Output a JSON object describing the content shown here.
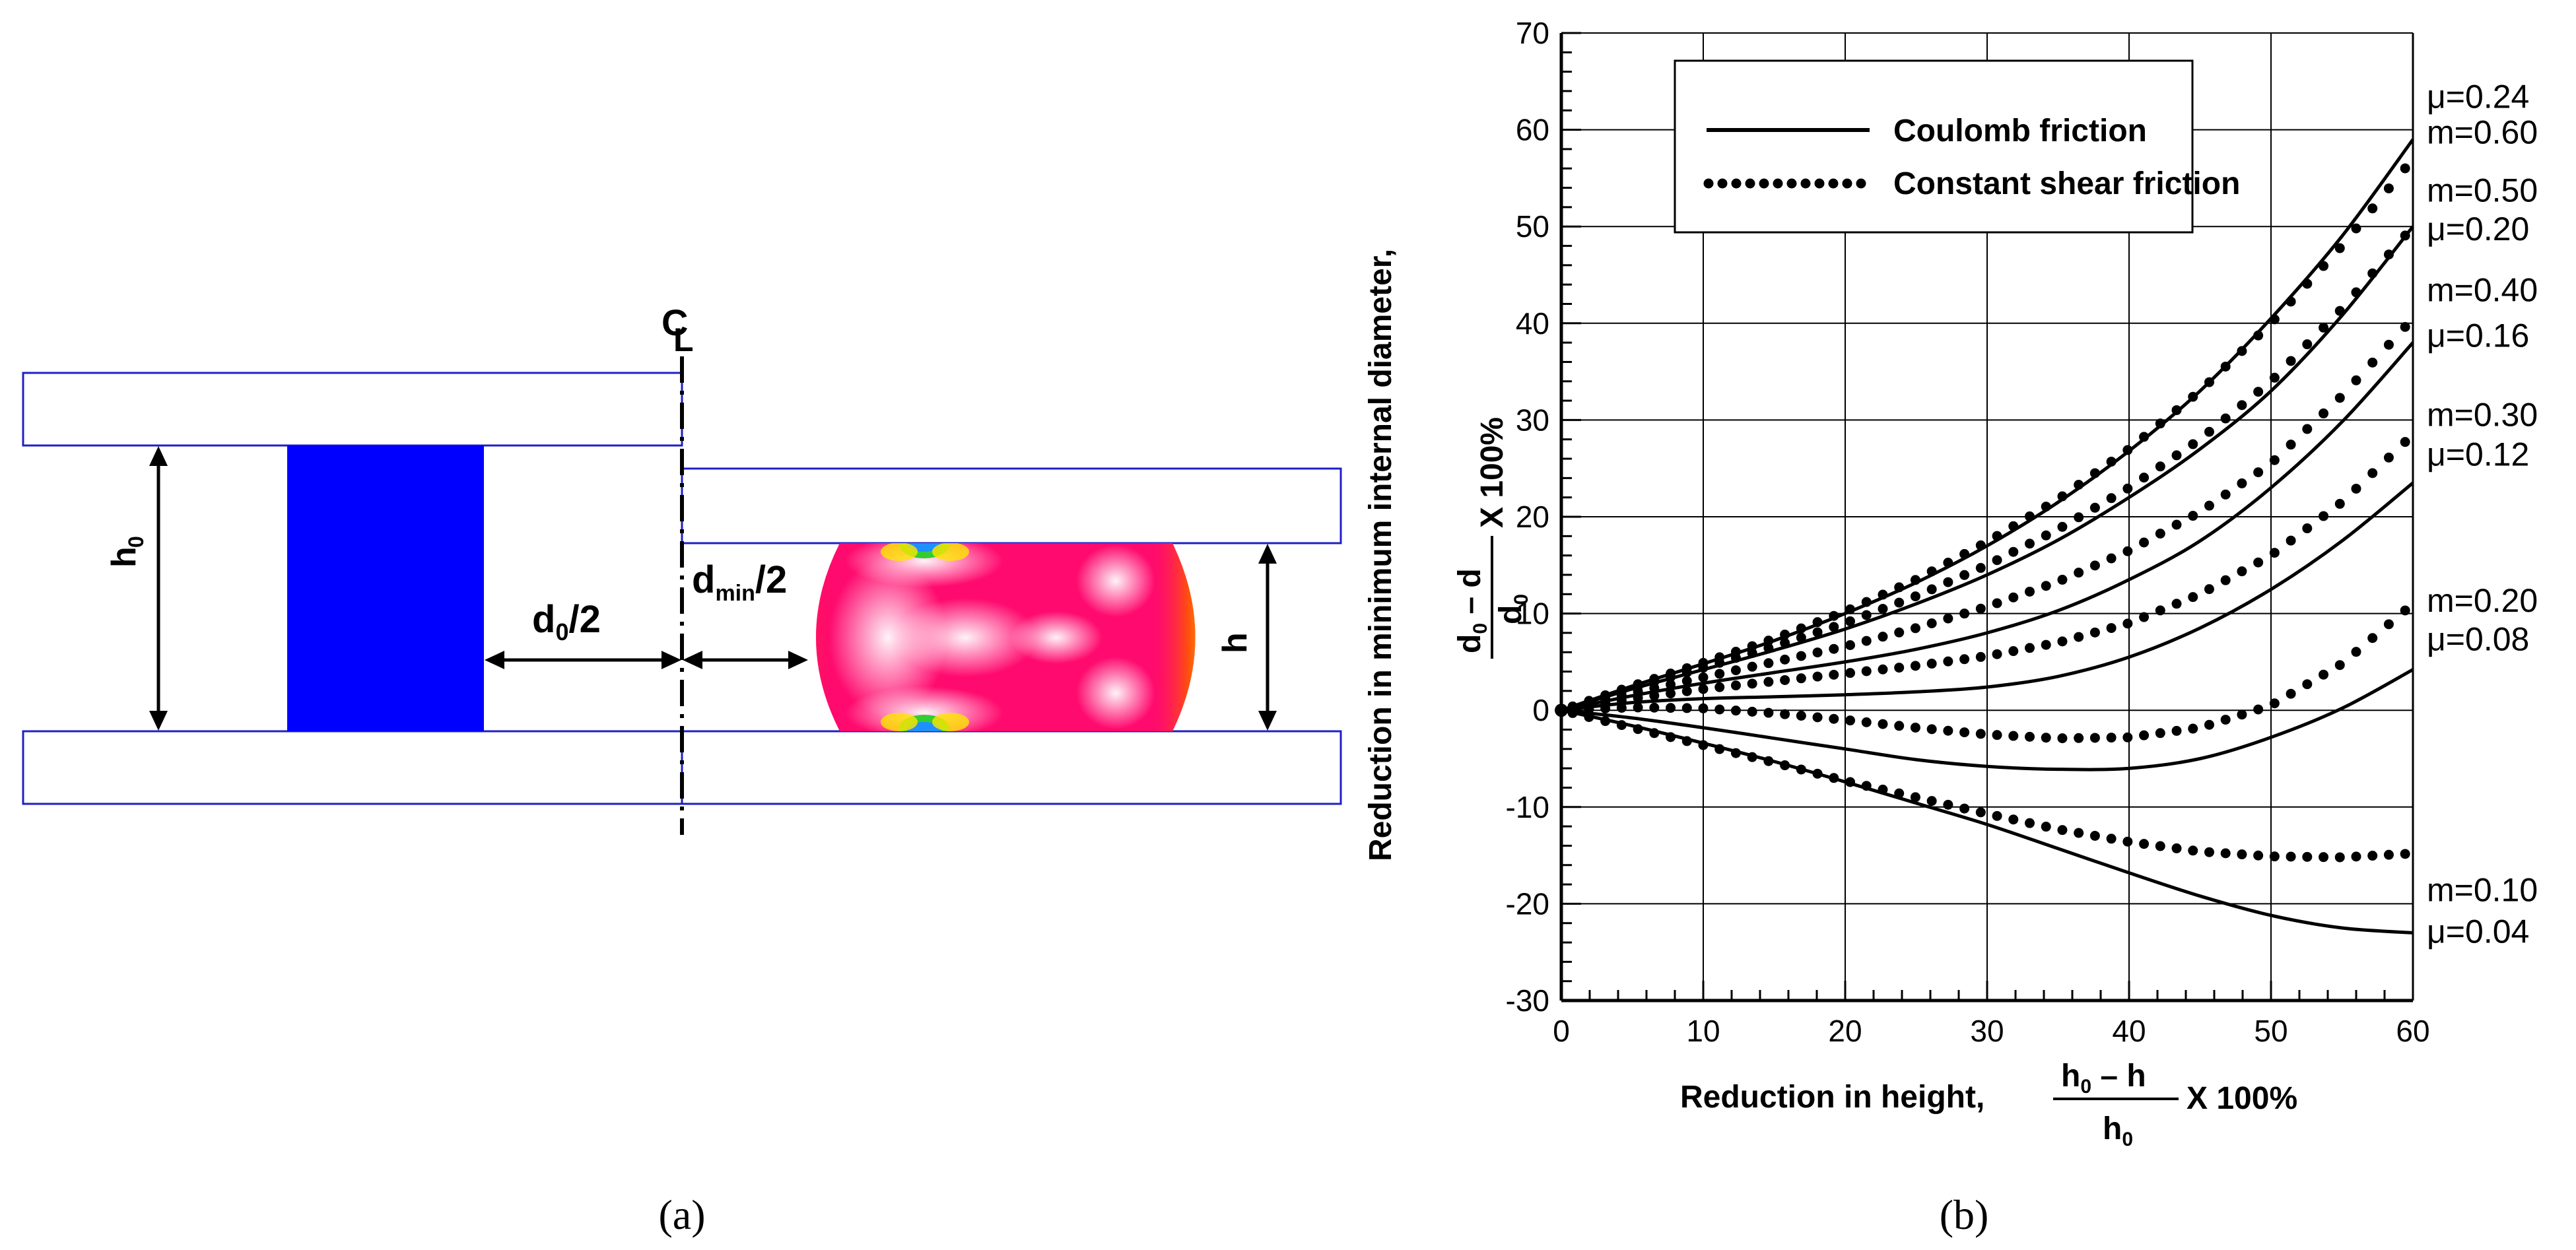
{
  "panel_a": {
    "caption": "(a)",
    "labels": {
      "centerline": "C",
      "centerline_sub": "L",
      "h0": "h",
      "h0_sub": "0",
      "d0_half_main": "d",
      "d0_half_sub": "0",
      "d0_half_tail": "/2",
      "dmin_half_main": "d",
      "dmin_half_sub": "min",
      "dmin_half_tail": "/2",
      "h": "h"
    },
    "colors": {
      "platen_border": "#1f1fc8",
      "ring_fill": "#0000ff",
      "contour_main": "#ff0a6e",
      "contour_highlight": "#ffffff",
      "contour_edge_yellow": "#ffe600",
      "contour_edge_green": "#33cc33",
      "contour_edge_blue": "#1e90ff"
    }
  },
  "panel_b": {
    "caption": "(b)"
  },
  "chart_data": {
    "type": "line",
    "xlabel": "Reduction in height,",
    "xlabel_fraction": {
      "num": "h",
      "num_sub": "0",
      "num_tail": " – h",
      "den": "h",
      "den_sub": "0",
      "suffix": "X 100%"
    },
    "ylabel": "Reduction in minimum internal diameter,",
    "ylabel_fraction": {
      "num": "d",
      "num_sub": "0",
      "num_tail": " – d",
      "den": "d",
      "den_sub": "0",
      "suffix": "X 100%"
    },
    "xlim": [
      0,
      60
    ],
    "ylim": [
      -30,
      70
    ],
    "xticks": [
      0,
      10,
      20,
      30,
      40,
      50,
      60
    ],
    "yticks": [
      -30,
      -20,
      -10,
      0,
      10,
      20,
      30,
      40,
      50,
      60,
      70
    ],
    "grid": true,
    "legend": {
      "placement": "top-left",
      "items": [
        {
          "label": "Coulomb friction",
          "style": "solid"
        },
        {
          "label": "Constant shear friction",
          "style": "dotted"
        }
      ]
    },
    "x": [
      0,
      5,
      10,
      15,
      20,
      25,
      30,
      35,
      40,
      45,
      50,
      55,
      60
    ],
    "series": [
      {
        "name": "μ=0.24",
        "style": "solid",
        "values": [
          0,
          2.5,
          4.8,
          7.2,
          10.0,
          13.2,
          17.0,
          21.5,
          26.8,
          33.0,
          40.5,
          49.0,
          59.0
        ]
      },
      {
        "name": "m=0.60",
        "style": "dotted",
        "values": [
          0,
          2.5,
          4.9,
          7.4,
          10.2,
          13.5,
          17.4,
          21.8,
          27.0,
          33.0,
          40.0,
          48.0,
          57.0
        ]
      },
      {
        "name": "μ=0.20",
        "style": "solid",
        "values": [
          0,
          2.2,
          4.2,
          6.2,
          8.4,
          11.0,
          14.0,
          17.6,
          22.0,
          27.0,
          33.0,
          40.8,
          50.0
        ]
      },
      {
        "name": "m=0.50",
        "style": "dotted",
        "values": [
          0,
          2.3,
          4.4,
          6.6,
          9.0,
          11.8,
          15.0,
          18.7,
          23.0,
          28.0,
          34.0,
          41.5,
          50.0
        ]
      },
      {
        "name": "m=0.40",
        "style": "dotted",
        "values": [
          0,
          1.8,
          3.4,
          5.0,
          6.6,
          8.5,
          10.7,
          13.3,
          16.5,
          20.5,
          25.5,
          32.5,
          40.5
        ]
      },
      {
        "name": "μ=0.16",
        "style": "solid",
        "values": [
          0,
          1.5,
          2.8,
          3.9,
          5.0,
          6.3,
          8.0,
          10.3,
          13.5,
          17.5,
          23.0,
          29.8,
          38.0
        ]
      },
      {
        "name": "m=0.30",
        "style": "dotted",
        "values": [
          0,
          1.2,
          2.2,
          3.0,
          3.8,
          4.6,
          5.6,
          7.0,
          9.0,
          12.0,
          16.0,
          21.5,
          28.5
        ]
      },
      {
        "name": "μ=0.12",
        "style": "solid",
        "values": [
          0,
          0.8,
          1.2,
          1.4,
          1.6,
          1.9,
          2.4,
          3.5,
          5.5,
          8.5,
          12.5,
          17.5,
          23.5
        ]
      },
      {
        "name": "m=0.20",
        "style": "dotted",
        "values": [
          0,
          0.3,
          0.2,
          -0.3,
          -1.0,
          -1.8,
          -2.5,
          -2.9,
          -2.8,
          -1.8,
          0.5,
          4.8,
          11.0
        ]
      },
      {
        "name": "μ=0.08",
        "style": "solid",
        "values": [
          0,
          -0.8,
          -1.8,
          -2.9,
          -4.0,
          -5.1,
          -5.8,
          -6.1,
          -6.0,
          -5.0,
          -2.8,
          0.2,
          4.2
        ]
      },
      {
        "name": "m=0.10",
        "style": "dotted",
        "values": [
          0,
          -1.8,
          -3.6,
          -5.4,
          -7.3,
          -9.0,
          -10.7,
          -12.3,
          -13.6,
          -14.6,
          -15.1,
          -15.2,
          -14.8
        ]
      },
      {
        "name": "μ=0.04",
        "style": "solid",
        "values": [
          0,
          -1.6,
          -3.4,
          -5.3,
          -7.4,
          -9.6,
          -11.8,
          -14.3,
          -16.8,
          -19.2,
          -21.2,
          -22.5,
          -23.0
        ]
      }
    ],
    "end_labels": [
      {
        "text": "μ=0.24",
        "y": 63.5
      },
      {
        "text": "m=0.60",
        "y": 59.8
      },
      {
        "text": "m=0.50",
        "y": 53.8
      },
      {
        "text": "μ=0.20",
        "y": 49.8
      },
      {
        "text": "m=0.40",
        "y": 43.5
      },
      {
        "text": "μ=0.16",
        "y": 38.8
      },
      {
        "text": "m=0.30",
        "y": 30.6
      },
      {
        "text": "μ=0.12",
        "y": 26.5
      },
      {
        "text": "m=0.20",
        "y": 11.4
      },
      {
        "text": "μ=0.08",
        "y": 7.4
      },
      {
        "text": "m=0.10",
        "y": -18.5
      },
      {
        "text": "μ=0.04",
        "y": -22.8
      }
    ]
  }
}
